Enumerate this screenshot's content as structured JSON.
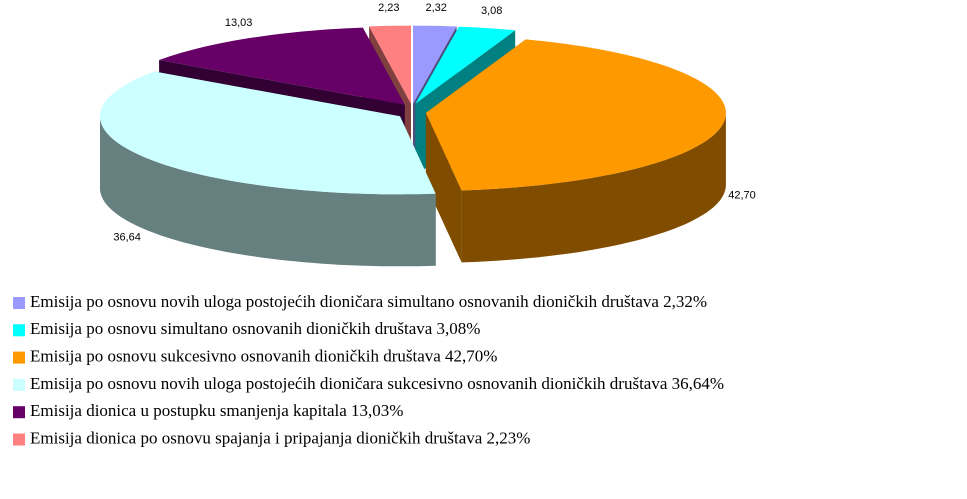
{
  "chart_data": {
    "type": "pie",
    "categories": [
      "Emisija po osnovu novih uloga postojećih dioničara simultano osnovanih dioničkih društava 2,32%",
      "Emisija po osnovu simultano osnovanih dioničkih društava 3,08%",
      "Emisija po osnovu sukcesivno osnovanih dioničkih društava 42,70%",
      "Emisija po osnovu novih uloga postojećih dioničara sukcesivno osnovanih dioničkih društava 36,64%",
      "Emisija dionica u postupku smanjenja kapitala 13,03%",
      "Emisija dionica po osnovu spajanja i pripajanja dioničkih društava 2,23%"
    ],
    "values": [
      2.32,
      3.08,
      42.7,
      36.64,
      13.03,
      2.23
    ],
    "value_labels": [
      "2,32",
      "3,08",
      "42,70",
      "36,64",
      "13,03",
      "2,23"
    ],
    "colors": [
      "#9999ff",
      "#00ffff",
      "#ff9900",
      "#ccffff",
      "#660066",
      "#ff8080"
    ]
  }
}
